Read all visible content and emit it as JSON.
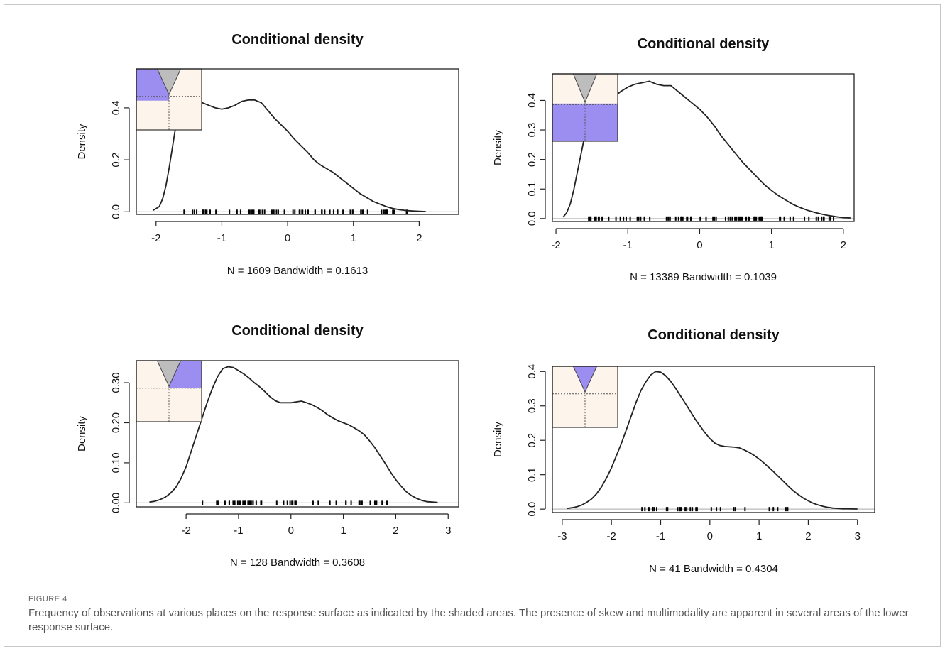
{
  "figure": {
    "label": "FIGURE 4",
    "caption": "Frequency of observations at various places on the response surface as indicated by the shaded areas. The presence of skew and multimodality are apparent in several areas of the lower response surface."
  },
  "colors": {
    "shade": "#9b8ef0",
    "inset_bg": "#fdf5ec",
    "cone": "#bdbdbd",
    "curve": "#222222"
  },
  "chart_data": [
    {
      "type": "line",
      "title": "Conditional density",
      "ylabel": "Density",
      "xlabel": "N = 1609   Bandwidth = 0.1613",
      "xlim": [
        -2.3,
        2.6
      ],
      "ylim": [
        -0.01,
        0.55
      ],
      "xticks": [
        -2,
        -1,
        0,
        1,
        2
      ],
      "xtick_labels": [
        "-2",
        "-1",
        "0",
        "1",
        "2"
      ],
      "yticks": [
        0.0,
        0.2,
        0.4
      ],
      "ytick_labels": [
        "0.0",
        "0.2",
        "0.4"
      ],
      "inset_shade": "upper-left",
      "rug_range": [
        -1.6,
        1.9
      ],
      "rug_count": 70,
      "x": [
        -2.05,
        -1.95,
        -1.9,
        -1.85,
        -1.8,
        -1.75,
        -1.7,
        -1.65,
        -1.6,
        -1.55,
        -1.5,
        -1.4,
        -1.3,
        -1.2,
        -1.1,
        -1.0,
        -0.9,
        -0.8,
        -0.7,
        -0.6,
        -0.5,
        -0.45,
        -0.4,
        -0.3,
        -0.2,
        -0.1,
        0.0,
        0.1,
        0.2,
        0.3,
        0.4,
        0.5,
        0.6,
        0.7,
        0.8,
        0.9,
        1.0,
        1.1,
        1.2,
        1.3,
        1.4,
        1.5,
        1.6,
        1.7,
        1.8,
        1.9,
        2.0,
        2.1
      ],
      "y": [
        0.005,
        0.02,
        0.05,
        0.1,
        0.17,
        0.25,
        0.33,
        0.38,
        0.42,
        0.44,
        0.45,
        0.44,
        0.42,
        0.41,
        0.4,
        0.395,
        0.4,
        0.41,
        0.425,
        0.43,
        0.43,
        0.425,
        0.42,
        0.39,
        0.36,
        0.335,
        0.31,
        0.28,
        0.255,
        0.23,
        0.2,
        0.18,
        0.165,
        0.15,
        0.13,
        0.11,
        0.09,
        0.07,
        0.055,
        0.04,
        0.03,
        0.02,
        0.013,
        0.008,
        0.005,
        0.003,
        0.002,
        0.001
      ]
    },
    {
      "type": "line",
      "title": "Conditional density",
      "ylabel": "Density",
      "xlabel": "N = 13389   Bandwidth = 0.1039",
      "xlim": [
        -2.05,
        2.15
      ],
      "ylim": [
        -0.01,
        0.49
      ],
      "xticks": [
        -2,
        -1,
        0,
        1,
        2
      ],
      "xtick_labels": [
        "-2",
        "-1",
        "0",
        "1",
        "2"
      ],
      "yticks": [
        0.0,
        0.1,
        0.2,
        0.3,
        0.4
      ],
      "ytick_labels": [
        "0.0",
        "0.1",
        "0.2",
        "0.3",
        "0.4"
      ],
      "inset_shade": "lower",
      "rug_range": [
        -1.55,
        1.95
      ],
      "rug_count": 80,
      "x": [
        -1.9,
        -1.85,
        -1.8,
        -1.75,
        -1.7,
        -1.65,
        -1.6,
        -1.55,
        -1.5,
        -1.45,
        -1.4,
        -1.3,
        -1.2,
        -1.1,
        -1.0,
        -0.9,
        -0.8,
        -0.7,
        -0.6,
        -0.5,
        -0.4,
        -0.3,
        -0.2,
        -0.1,
        0.0,
        0.1,
        0.2,
        0.3,
        0.4,
        0.5,
        0.6,
        0.7,
        0.8,
        0.9,
        1.0,
        1.1,
        1.2,
        1.3,
        1.4,
        1.5,
        1.6,
        1.7,
        1.8,
        1.9,
        2.0,
        2.1
      ],
      "y": [
        0.005,
        0.02,
        0.05,
        0.1,
        0.16,
        0.22,
        0.28,
        0.32,
        0.34,
        0.355,
        0.365,
        0.385,
        0.41,
        0.43,
        0.445,
        0.455,
        0.46,
        0.465,
        0.455,
        0.45,
        0.45,
        0.43,
        0.41,
        0.39,
        0.37,
        0.345,
        0.315,
        0.28,
        0.25,
        0.22,
        0.19,
        0.165,
        0.14,
        0.115,
        0.095,
        0.077,
        0.062,
        0.048,
        0.037,
        0.028,
        0.021,
        0.015,
        0.01,
        0.006,
        0.003,
        0.002
      ]
    },
    {
      "type": "line",
      "title": "Conditional density",
      "ylabel": "Density",
      "xlabel": "N = 128   Bandwidth = 0.3608",
      "xlim": [
        -2.95,
        3.2
      ],
      "ylim": [
        -0.01,
        0.355
      ],
      "xticks": [
        -2,
        -1,
        0,
        1,
        2,
        3
      ],
      "xtick_labels": [
        "-2",
        "-1",
        "0",
        "1",
        "2",
        "3"
      ],
      "yticks": [
        0.0,
        0.1,
        0.2,
        0.3
      ],
      "ytick_labels": [
        "0.00",
        "0.10",
        "0.20",
        "0.30"
      ],
      "inset_shade": "upper-right",
      "rug_range": [
        -1.7,
        2.0
      ],
      "rug_count": 45,
      "x": [
        -2.7,
        -2.6,
        -2.5,
        -2.4,
        -2.3,
        -2.2,
        -2.1,
        -2.0,
        -1.9,
        -1.8,
        -1.7,
        -1.6,
        -1.5,
        -1.4,
        -1.3,
        -1.2,
        -1.1,
        -1.0,
        -0.9,
        -0.8,
        -0.7,
        -0.6,
        -0.5,
        -0.4,
        -0.3,
        -0.2,
        -0.1,
        0.0,
        0.1,
        0.2,
        0.3,
        0.4,
        0.5,
        0.6,
        0.7,
        0.8,
        0.9,
        1.0,
        1.1,
        1.2,
        1.3,
        1.4,
        1.5,
        1.6,
        1.7,
        1.8,
        1.9,
        2.0,
        2.1,
        2.2,
        2.3,
        2.4,
        2.5,
        2.6,
        2.7,
        2.8
      ],
      "y": [
        0.002,
        0.004,
        0.008,
        0.014,
        0.024,
        0.038,
        0.06,
        0.09,
        0.13,
        0.17,
        0.21,
        0.25,
        0.285,
        0.315,
        0.335,
        0.34,
        0.338,
        0.33,
        0.322,
        0.312,
        0.3,
        0.29,
        0.278,
        0.265,
        0.255,
        0.25,
        0.25,
        0.25,
        0.252,
        0.254,
        0.25,
        0.245,
        0.238,
        0.23,
        0.22,
        0.212,
        0.205,
        0.2,
        0.195,
        0.188,
        0.18,
        0.17,
        0.155,
        0.138,
        0.118,
        0.098,
        0.077,
        0.058,
        0.042,
        0.028,
        0.018,
        0.011,
        0.006,
        0.003,
        0.002,
        0.001
      ]
    },
    {
      "type": "line",
      "title": "Conditional density",
      "ylabel": "Density",
      "xlabel": "N = 41   Bandwidth = 0.4304",
      "xlim": [
        -3.2,
        3.35
      ],
      "ylim": [
        -0.01,
        0.415
      ],
      "xticks": [
        -3,
        -2,
        -1,
        0,
        1,
        2,
        3
      ],
      "xtick_labels": [
        "-3",
        "-2",
        "-1",
        "0",
        "1",
        "2",
        "3"
      ],
      "yticks": [
        0.0,
        0.1,
        0.2,
        0.3,
        0.4
      ],
      "ytick_labels": [
        "0.0",
        "0.1",
        "0.2",
        "0.3",
        "0.4"
      ],
      "inset_shade": "cone",
      "rug_range": [
        -1.6,
        1.8
      ],
      "rug_count": 30,
      "x": [
        -2.9,
        -2.8,
        -2.7,
        -2.6,
        -2.5,
        -2.4,
        -2.3,
        -2.2,
        -2.1,
        -2.0,
        -1.9,
        -1.8,
        -1.7,
        -1.6,
        -1.5,
        -1.4,
        -1.3,
        -1.2,
        -1.1,
        -1.0,
        -0.9,
        -0.8,
        -0.7,
        -0.6,
        -0.5,
        -0.4,
        -0.3,
        -0.2,
        -0.1,
        0.0,
        0.1,
        0.2,
        0.3,
        0.4,
        0.5,
        0.6,
        0.7,
        0.8,
        0.9,
        1.0,
        1.1,
        1.2,
        1.3,
        1.4,
        1.5,
        1.6,
        1.7,
        1.8,
        1.9,
        2.0,
        2.1,
        2.2,
        2.3,
        2.4,
        2.5,
        2.6,
        2.7,
        2.8,
        2.9,
        3.0
      ],
      "y": [
        0.002,
        0.004,
        0.007,
        0.012,
        0.02,
        0.03,
        0.045,
        0.065,
        0.09,
        0.12,
        0.155,
        0.19,
        0.23,
        0.27,
        0.31,
        0.345,
        0.37,
        0.39,
        0.4,
        0.398,
        0.388,
        0.372,
        0.352,
        0.33,
        0.308,
        0.285,
        0.262,
        0.242,
        0.222,
        0.205,
        0.192,
        0.185,
        0.182,
        0.181,
        0.18,
        0.178,
        0.172,
        0.165,
        0.156,
        0.146,
        0.134,
        0.121,
        0.108,
        0.094,
        0.08,
        0.066,
        0.053,
        0.042,
        0.032,
        0.024,
        0.017,
        0.012,
        0.008,
        0.005,
        0.003,
        0.002,
        0.001,
        0.001,
        0.0005,
        0.0003
      ]
    }
  ]
}
